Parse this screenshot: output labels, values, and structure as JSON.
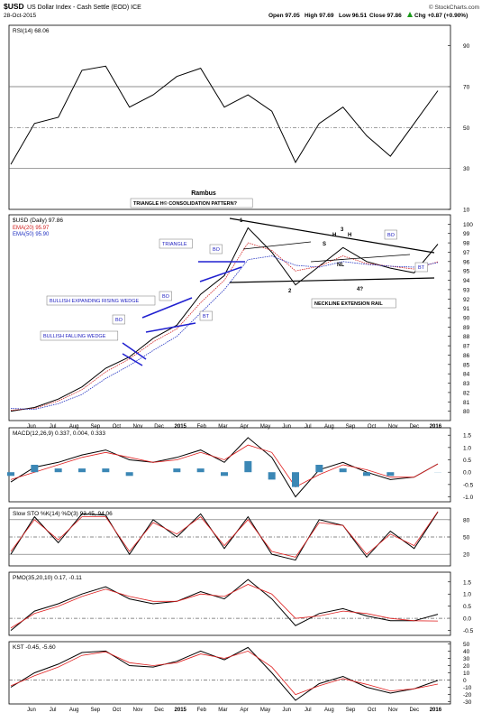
{
  "header": {
    "symbol": "$USD",
    "name": "US Dollar Index - Cash Settle (EOD) ICE",
    "date": "28-Oct-2015",
    "open": "Open 97.05",
    "high": "High 97.69",
    "low": "Low 96.51",
    "close": "Close 97.86",
    "change": "Chg +0.87 (+0.90%)",
    "change_up_icon": "up-arrow-icon",
    "brand": "© StockCharts.com"
  },
  "colors": {
    "price": "#000000",
    "ema20": "#d02020",
    "ema50": "#2030c0",
    "rsi_overbought_fill": "#4e7a4e",
    "macd_hist": "#3b87b5",
    "signal": "#e02020",
    "trendline": "#2020d0",
    "pattern_line": "#000000"
  },
  "chart_data": [
    {
      "type": "line",
      "panel": "rsi",
      "label": "RSI(14) 68.06",
      "x": [
        "2014-05",
        "2014-06",
        "2014-07",
        "2014-08",
        "2014-09",
        "2014-10",
        "2014-11",
        "2014-12",
        "2015-01",
        "2015-02",
        "2015-03",
        "2015-04",
        "2015-05",
        "2015-06",
        "2015-07",
        "2015-08",
        "2015-09",
        "2015-10",
        "2015-11"
      ],
      "series": [
        {
          "values": [
            32,
            52,
            55,
            78,
            80,
            60,
            66,
            75,
            79,
            60,
            66,
            58,
            33,
            52,
            60,
            46,
            36,
            52,
            68
          ]
        }
      ],
      "ylim": [
        10,
        100
      ],
      "ticks": [
        10,
        30,
        50,
        70,
        90
      ],
      "reference_lines": [
        30,
        50,
        70
      ]
    },
    {
      "type": "line",
      "panel": "price",
      "title": "Rambus",
      "label": "$USD (Daily) 97.86",
      "legend": [
        {
          "name": "EMA(20) 95.97",
          "color": "#d02020"
        },
        {
          "name": "EMA(50) 95.90",
          "color": "#2030c0"
        }
      ],
      "x": [
        "2014-05",
        "2014-06",
        "2014-07",
        "2014-08",
        "2014-09",
        "2014-10",
        "2014-11",
        "2014-12",
        "2015-01",
        "2015-02",
        "2015-03",
        "2015-04",
        "2015-05",
        "2015-06",
        "2015-07",
        "2015-08",
        "2015-09",
        "2015-10",
        "2015-11"
      ],
      "series": [
        {
          "name": "$USD",
          "values": [
            80.0,
            80.4,
            81.3,
            82.6,
            84.6,
            85.8,
            87.8,
            89.2,
            92.5,
            94.5,
            99.6,
            97.0,
            93.5,
            95.5,
            97.5,
            96.0,
            95.3,
            94.8,
            97.86
          ]
        },
        {
          "name": "EMA(20)",
          "values": [
            80.1,
            80.3,
            81.1,
            82.3,
            84.2,
            85.6,
            87.4,
            88.8,
            91.6,
            94.0,
            98.0,
            97.2,
            95.0,
            95.5,
            96.6,
            95.8,
            95.5,
            95.2,
            95.97
          ]
        },
        {
          "name": "EMA(50)",
          "values": [
            80.3,
            80.2,
            80.8,
            81.8,
            83.5,
            84.9,
            86.5,
            88.0,
            90.5,
            93.0,
            96.2,
            96.6,
            95.6,
            95.4,
            96.0,
            95.7,
            95.5,
            95.4,
            95.9
          ]
        }
      ],
      "ylim": [
        79,
        101
      ],
      "ticks": [
        80,
        81,
        82,
        83,
        84,
        85,
        86,
        87,
        88,
        89,
        90,
        91,
        92,
        93,
        94,
        95,
        96,
        97,
        98,
        99,
        100
      ],
      "annotations": [
        "TRIANGLE H© CONSOLIDATION PATTERN?",
        "TRIANGLE",
        "BO",
        "BULLISH EXPANDING RISING WEDGE",
        "BO",
        "BT",
        "BO",
        "BULLISH FALLING WEDGE",
        "1",
        "2",
        "3",
        "4?",
        "H",
        "H",
        "S",
        "NL",
        "BO",
        "BT",
        "NECKLINE EXTENSION RAIL"
      ]
    },
    {
      "type": "line",
      "panel": "macd",
      "label": "MACD(12,26,9) 0.337, 0.004, 0.333",
      "x": [
        "2014-05",
        "2014-06",
        "2014-07",
        "2014-08",
        "2014-09",
        "2014-10",
        "2014-11",
        "2014-12",
        "2015-01",
        "2015-02",
        "2015-03",
        "2015-04",
        "2015-05",
        "2015-06",
        "2015-07",
        "2015-08",
        "2015-09",
        "2015-10",
        "2015-11"
      ],
      "series": [
        {
          "name": "MACD",
          "values": [
            -0.4,
            0.2,
            0.4,
            0.7,
            0.9,
            0.5,
            0.4,
            0.6,
            0.9,
            0.4,
            1.4,
            0.6,
            -1.0,
            0.1,
            0.4,
            0.0,
            -0.3,
            -0.2,
            0.337
          ]
        },
        {
          "name": "Signal",
          "values": [
            -0.3,
            0.0,
            0.3,
            0.6,
            0.8,
            0.6,
            0.4,
            0.5,
            0.8,
            0.5,
            1.1,
            0.8,
            -0.6,
            -0.1,
            0.3,
            0.1,
            -0.2,
            -0.2,
            0.333
          ]
        },
        {
          "name": "Histogram",
          "values": [
            -0.1,
            0.2,
            0.1,
            0.1,
            0.1,
            -0.1,
            0.0,
            0.1,
            0.1,
            -0.1,
            0.3,
            -0.2,
            -0.4,
            0.2,
            0.1,
            -0.1,
            -0.1,
            0.0,
            0.004
          ]
        }
      ],
      "ylim": [
        -1.2,
        1.8
      ],
      "ticks": [
        -1.0,
        -0.5,
        0.0,
        0.5,
        1.0,
        1.5
      ]
    },
    {
      "type": "line",
      "panel": "sto",
      "label": "Slow STO %K(14) %D(3) 93.45, 94.06",
      "x": [
        "2014-05",
        "2014-06",
        "2014-07",
        "2014-08",
        "2014-09",
        "2014-10",
        "2014-11",
        "2014-12",
        "2015-01",
        "2015-02",
        "2015-03",
        "2015-04",
        "2015-05",
        "2015-06",
        "2015-07",
        "2015-08",
        "2015-09",
        "2015-10",
        "2015-11"
      ],
      "series": [
        {
          "name": "%K",
          "values": [
            20,
            85,
            40,
            90,
            88,
            20,
            80,
            50,
            90,
            30,
            85,
            20,
            10,
            80,
            70,
            15,
            60,
            30,
            93.45
          ]
        },
        {
          "name": "%D",
          "values": [
            25,
            80,
            45,
            85,
            85,
            25,
            75,
            55,
            85,
            35,
            80,
            25,
            15,
            75,
            70,
            20,
            55,
            35,
            94.06
          ]
        }
      ],
      "ylim": [
        0,
        100
      ],
      "ticks": [
        20,
        50,
        80
      ],
      "reference_lines": [
        20,
        50,
        80
      ]
    },
    {
      "type": "line",
      "panel": "pmo",
      "label": "PMO(35,20,10) 0.17, -0.11",
      "x": [
        "2014-05",
        "2014-06",
        "2014-07",
        "2014-08",
        "2014-09",
        "2014-10",
        "2014-11",
        "2014-12",
        "2015-01",
        "2015-02",
        "2015-03",
        "2015-04",
        "2015-05",
        "2015-06",
        "2015-07",
        "2015-08",
        "2015-09",
        "2015-10",
        "2015-11"
      ],
      "series": [
        {
          "name": "PMO",
          "values": [
            -0.5,
            0.3,
            0.6,
            1.0,
            1.3,
            0.8,
            0.6,
            0.7,
            1.1,
            0.8,
            1.6,
            0.8,
            -0.3,
            0.2,
            0.4,
            0.1,
            -0.1,
            -0.1,
            0.17
          ]
        },
        {
          "name": "Signal",
          "values": [
            -0.4,
            0.2,
            0.5,
            0.9,
            1.2,
            0.9,
            0.7,
            0.7,
            1.0,
            0.9,
            1.4,
            1.0,
            0.0,
            0.1,
            0.3,
            0.2,
            0.0,
            -0.1,
            -0.11
          ]
        }
      ],
      "ylim": [
        -0.7,
        1.9
      ],
      "ticks": [
        -0.5,
        0.0,
        0.5,
        1.0,
        1.5
      ],
      "reference_lines": [
        0.0
      ]
    },
    {
      "type": "line",
      "panel": "kst",
      "label": "KST -0.45, -5.60",
      "x": [
        "2014-05",
        "2014-06",
        "2014-07",
        "2014-08",
        "2014-09",
        "2014-10",
        "2014-11",
        "2014-12",
        "2015-01",
        "2015-02",
        "2015-03",
        "2015-04",
        "2015-05",
        "2015-06",
        "2015-07",
        "2015-08",
        "2015-09",
        "2015-10",
        "2015-11"
      ],
      "series": [
        {
          "name": "KST",
          "values": [
            -10,
            10,
            22,
            38,
            40,
            20,
            18,
            26,
            40,
            28,
            45,
            10,
            -28,
            -5,
            5,
            -10,
            -18,
            -12,
            -0.45
          ]
        },
        {
          "name": "Signal",
          "values": [
            -8,
            6,
            18,
            34,
            39,
            24,
            20,
            24,
            36,
            30,
            40,
            18,
            -20,
            -8,
            2,
            -6,
            -15,
            -12,
            -5.6
          ]
        }
      ],
      "ylim": [
        -33,
        53
      ],
      "ticks": [
        -30,
        -20,
        -10,
        0,
        10,
        20,
        30,
        40,
        50
      ],
      "reference_lines": [
        0
      ]
    }
  ],
  "xaxis": {
    "labels": [
      "Jun",
      "Jul",
      "Aug",
      "Sep",
      "Oct",
      "Nov",
      "Dec",
      "2015",
      "Feb",
      "Mar",
      "Apr",
      "May",
      "Jun",
      "Jul",
      "Aug",
      "Sep",
      "Oct",
      "Nov",
      "Dec",
      "2016"
    ]
  }
}
